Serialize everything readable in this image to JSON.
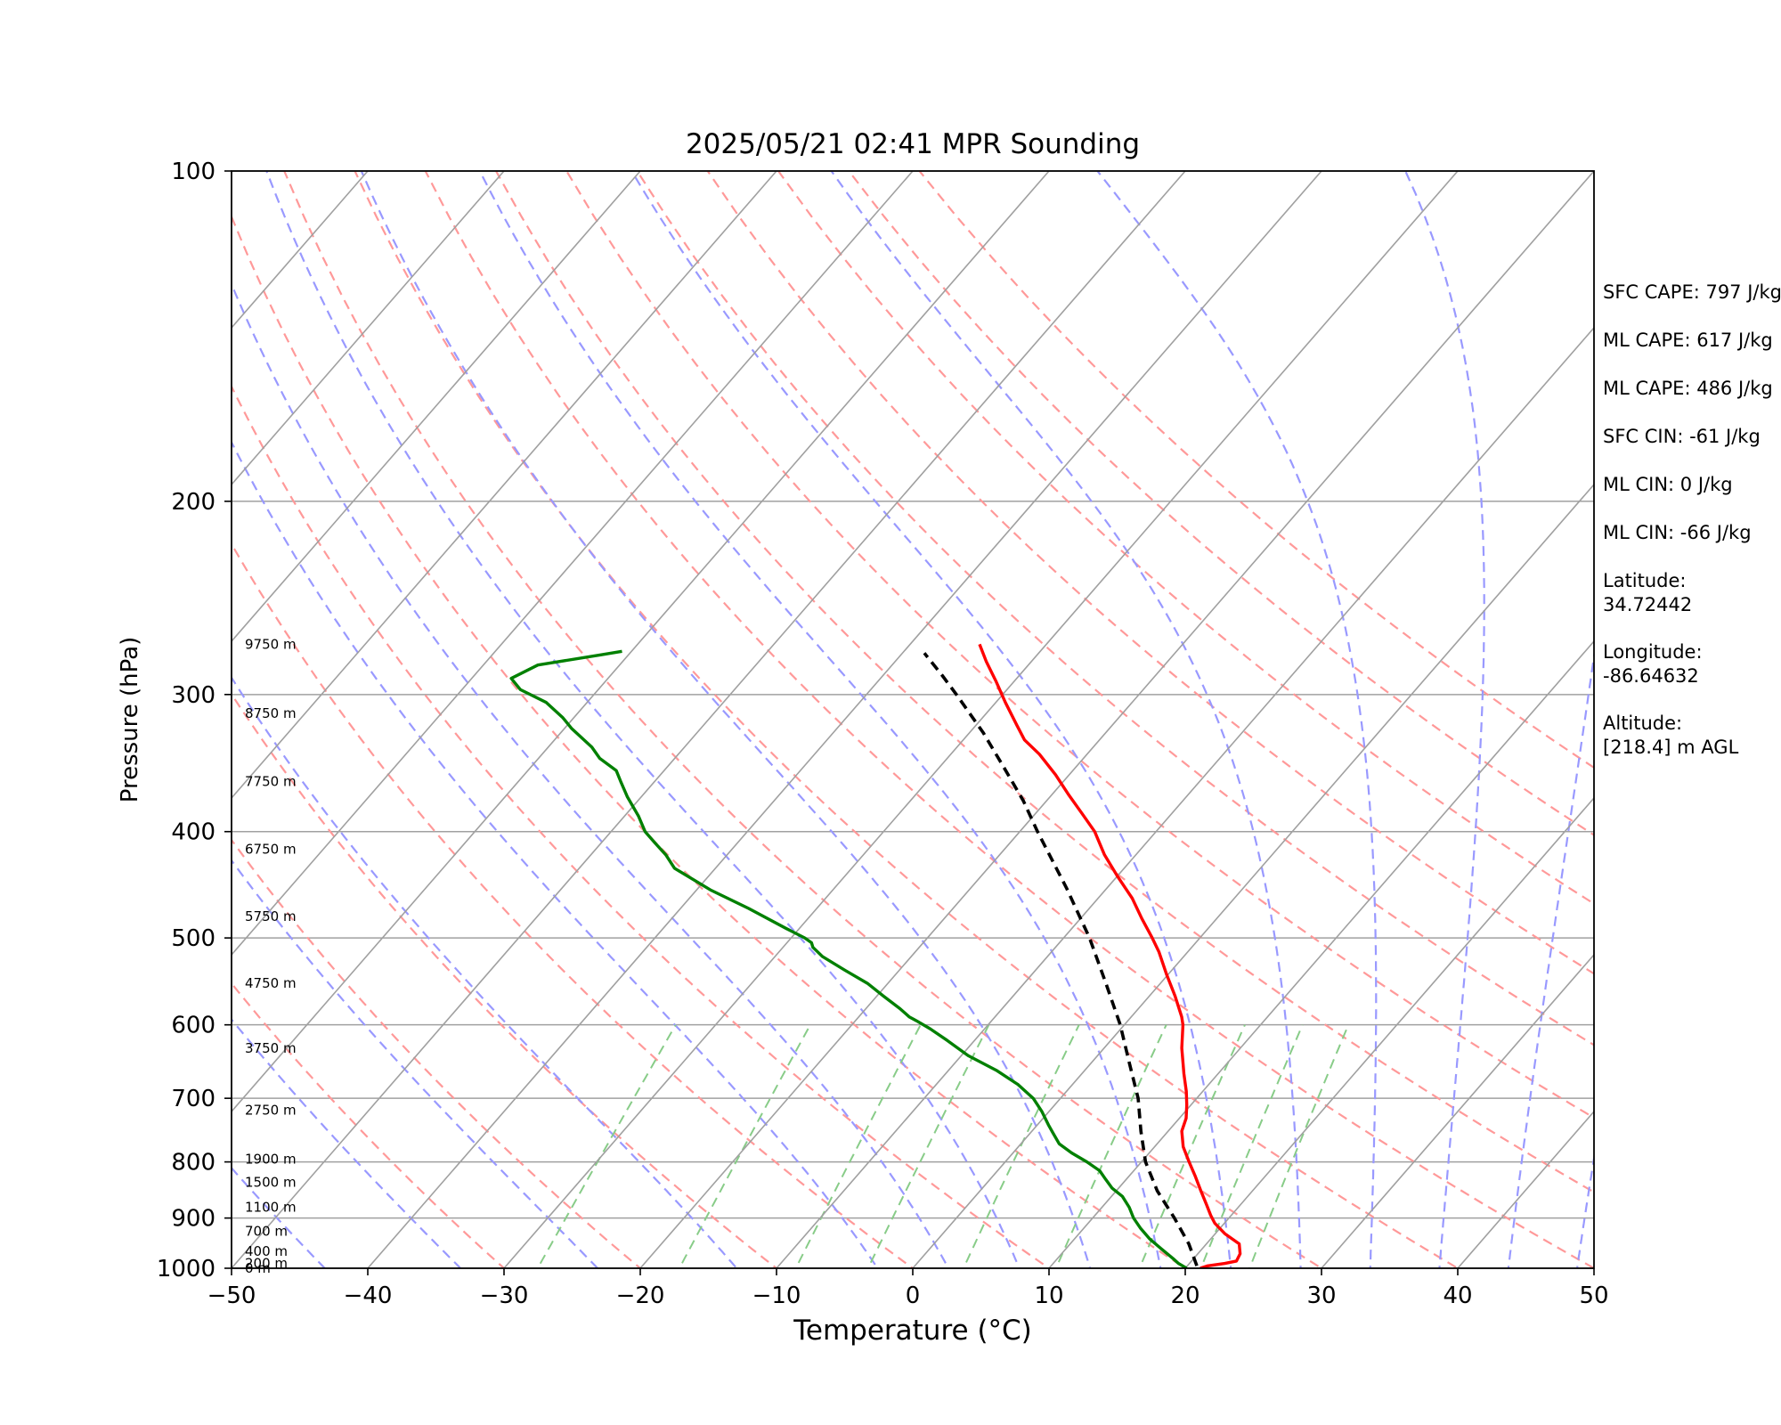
{
  "chart_data": {
    "type": "line",
    "title": "2025/05/21 02:41 MPR Sounding",
    "xlabel": "Temperature (°C)",
    "ylabel": "Pressure (hPa)",
    "xlim": [
      -50,
      50
    ],
    "ylim": [
      1000,
      100
    ],
    "y_scale": "log",
    "skew": "skew-T",
    "x_ticks": [
      "−50",
      "−40",
      "−30",
      "−20",
      "−10",
      "0",
      "10",
      "20",
      "30",
      "40",
      "50"
    ],
    "x_tick_values": [
      -50,
      -40,
      -30,
      -20,
      -10,
      0,
      10,
      20,
      30,
      40,
      50
    ],
    "y_ticks": [
      "100",
      "200",
      "300",
      "400",
      "500",
      "600",
      "700",
      "800",
      "900",
      "1000"
    ],
    "y_tick_values": [
      100,
      200,
      300,
      400,
      500,
      600,
      700,
      800,
      900,
      1000
    ],
    "height_labels": [
      {
        "p": 1000,
        "text": "0 m"
      },
      {
        "p": 990,
        "text": "200 m"
      },
      {
        "p": 965,
        "text": "400 m"
      },
      {
        "p": 925,
        "text": "700 m"
      },
      {
        "p": 880,
        "text": "1100 m"
      },
      {
        "p": 835,
        "text": "1500 m"
      },
      {
        "p": 795,
        "text": "1900 m"
      },
      {
        "p": 718,
        "text": "2750 m"
      },
      {
        "p": 630,
        "text": "3750 m"
      },
      {
        "p": 550,
        "text": "4750 m"
      },
      {
        "p": 478,
        "text": "5750 m"
      },
      {
        "p": 415,
        "text": "6750 m"
      },
      {
        "p": 360,
        "text": "7750 m"
      },
      {
        "p": 312,
        "text": "8750 m"
      },
      {
        "p": 270,
        "text": "9750 m"
      }
    ],
    "series": [
      {
        "name": "Temperature",
        "color": "#ff0000",
        "style": "solid",
        "points": [
          [
            21.1,
            1000
          ],
          [
            21.5,
            995
          ],
          [
            22.6,
            990
          ],
          [
            23.3,
            985
          ],
          [
            23.1,
            970
          ],
          [
            22.4,
            950
          ],
          [
            20.7,
            930
          ],
          [
            19.3,
            910
          ],
          [
            18.5,
            895
          ],
          [
            17.5,
            875
          ],
          [
            16.2,
            850
          ],
          [
            14.9,
            825
          ],
          [
            13.5,
            800
          ],
          [
            12.1,
            775
          ],
          [
            11.0,
            750
          ],
          [
            10.5,
            730
          ],
          [
            9.7,
            710
          ],
          [
            8.8,
            690
          ],
          [
            7.5,
            665
          ],
          [
            5.7,
            630
          ],
          [
            4.3,
            600
          ],
          [
            3.7,
            590
          ],
          [
            1.9,
            565
          ],
          [
            -0.1,
            540
          ],
          [
            -2.1,
            515
          ],
          [
            -3.5,
            500
          ],
          [
            -5.5,
            480
          ],
          [
            -7.5,
            460
          ],
          [
            -9.9,
            440
          ],
          [
            -12.3,
            420
          ],
          [
            -14.5,
            400
          ],
          [
            -16.6,
            385
          ],
          [
            -18.8,
            370
          ],
          [
            -21.0,
            355
          ],
          [
            -23.5,
            340
          ],
          [
            -25.5,
            330
          ],
          [
            -27.0,
            320
          ],
          [
            -29.3,
            305
          ],
          [
            -31.3,
            292
          ],
          [
            -33.3,
            280
          ],
          [
            -34.9,
            270
          ]
        ]
      },
      {
        "name": "Dewpoint",
        "color": "#008000",
        "style": "solid",
        "points": [
          [
            20.1,
            1000
          ],
          [
            19.2,
            990
          ],
          [
            18.5,
            980
          ],
          [
            17.0,
            960
          ],
          [
            15.5,
            940
          ],
          [
            14.2,
            920
          ],
          [
            13.0,
            900
          ],
          [
            12.0,
            880
          ],
          [
            10.8,
            860
          ],
          [
            9.5,
            845
          ],
          [
            8.5,
            830
          ],
          [
            7.5,
            815
          ],
          [
            6.0,
            800
          ],
          [
            4.3,
            785
          ],
          [
            2.8,
            770
          ],
          [
            1.6,
            752
          ],
          [
            0.8,
            740
          ],
          [
            -0.5,
            720
          ],
          [
            -2.0,
            700
          ],
          [
            -4.0,
            680
          ],
          [
            -6.5,
            660
          ],
          [
            -9.5,
            640
          ],
          [
            -12.0,
            620
          ],
          [
            -14.0,
            605
          ],
          [
            -15.5,
            595
          ],
          [
            -16.3,
            590
          ],
          [
            -17.5,
            580
          ],
          [
            -19.5,
            565
          ],
          [
            -21.5,
            550
          ],
          [
            -24.0,
            535
          ],
          [
            -26.5,
            520
          ],
          [
            -27.8,
            510
          ],
          [
            -28.2,
            505
          ],
          [
            -29.0,
            500
          ],
          [
            -31.0,
            490
          ],
          [
            -35.0,
            470
          ],
          [
            -39.0,
            452
          ],
          [
            -43.0,
            432
          ],
          [
            -44.5,
            420
          ],
          [
            -46.0,
            410
          ],
          [
            -47.5,
            400
          ],
          [
            -49.0,
            387
          ],
          [
            -51.0,
            372
          ],
          [
            -52.5,
            360
          ],
          [
            -53.5,
            352
          ],
          [
            -55.5,
            343
          ],
          [
            -56.8,
            335
          ],
          [
            -59.5,
            322
          ],
          [
            -60.8,
            315
          ],
          [
            -63.0,
            305
          ],
          [
            -65.7,
            297
          ],
          [
            -67.1,
            290
          ],
          [
            -66.0,
            282
          ],
          [
            -62.0,
            276
          ],
          [
            -60.7,
            274
          ]
        ]
      },
      {
        "name": "Parcel Profile",
        "color": "#000000",
        "style": "dashed",
        "points": [
          [
            20.7,
            995
          ],
          [
            18.7,
            950
          ],
          [
            16.0,
            900
          ],
          [
            13.0,
            850
          ],
          [
            10.3,
            800
          ],
          [
            8.0,
            750
          ],
          [
            5.7,
            700
          ],
          [
            2.8,
            650
          ],
          [
            -0.3,
            600
          ],
          [
            -4.0,
            550
          ],
          [
            -8.1,
            500
          ],
          [
            -13.0,
            450
          ],
          [
            -18.7,
            400
          ],
          [
            -21.7,
            375
          ],
          [
            -25.2,
            350
          ],
          [
            -29.0,
            325
          ],
          [
            -33.4,
            300
          ],
          [
            -35.7,
            288
          ],
          [
            -38.4,
            275
          ]
        ]
      }
    ],
    "dry_adiabats": {
      "color": "#ff9999",
      "style": "dashed",
      "theta_c": [
        -30,
        -20,
        -10,
        0,
        10,
        20,
        30,
        40,
        50,
        60,
        70,
        80,
        90,
        100,
        110,
        120
      ]
    },
    "moist_adiabats": {
      "color": "#9999ff",
      "style": "dashed",
      "start_t_c": [
        -50,
        -40,
        -30,
        -20,
        -10,
        0,
        5,
        10,
        15,
        20,
        25,
        30,
        35,
        40,
        45,
        50
      ]
    },
    "mixing_ratio_lines": {
      "color": "#88cc88",
      "style": "dashed",
      "w_gkg": [
        0.4,
        1,
        2,
        3,
        5,
        8,
        12,
        16,
        20
      ],
      "top_p": 600
    },
    "isotherms": {
      "color": "#a0a0a0",
      "style": "solid"
    },
    "isobars": {
      "color": "#a0a0a0",
      "style": "solid"
    },
    "grid": true
  },
  "stats": [
    "SFC CAPE: 797 J/kg",
    "ML CAPE: 617 J/kg",
    "ML CAPE: 486 J/kg",
    "SFC CIN: -61 J/kg",
    "ML CIN: 0 J/kg",
    "ML CIN: -66 J/kg"
  ],
  "location": {
    "latitude_label": "Latitude:",
    "latitude": "34.72442",
    "longitude_label": "Longitude:",
    "longitude": "-86.64632",
    "altitude_label": "Altitude:",
    "altitude": "[218.4] m AGL"
  }
}
